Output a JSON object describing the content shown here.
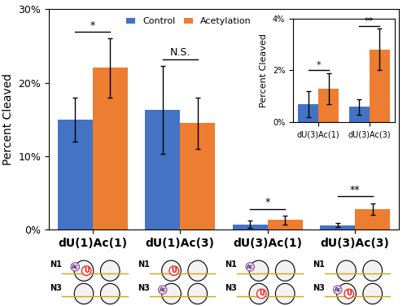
{
  "chart_data": [
    {
      "type": "bar",
      "y_label": "Percent Cleaved",
      "categories": [
        "dU(1)Ac(1)",
        "dU(1)Ac(3)",
        "dU(3)Ac(1)",
        "dU(3)Ac(3)"
      ],
      "series": [
        {
          "name": "Control",
          "color": "#4472c4",
          "values": [
            15.0,
            16.3,
            0.7,
            0.6
          ],
          "errors": [
            3.0,
            6.0,
            0.5,
            0.3
          ]
        },
        {
          "name": "Acetylation",
          "color": "#ed7d31",
          "values": [
            22.0,
            14.5,
            1.3,
            2.8
          ],
          "errors": [
            4.0,
            3.5,
            0.6,
            0.8
          ]
        }
      ],
      "ylim": [
        0,
        30
      ],
      "yticks": [
        {
          "value": 0,
          "label": "0%"
        },
        {
          "value": 10,
          "label": "10%"
        },
        {
          "value": 20,
          "label": "20%"
        },
        {
          "value": 30,
          "label": "30%"
        }
      ],
      "annotations": [
        "*",
        "N.S.",
        "*",
        "**"
      ],
      "legend": "upper center"
    },
    {
      "type": "bar",
      "y_label": "Percent Cleaved",
      "categories": [
        "dU(3)Ac(1)",
        "dU(3)Ac(3)"
      ],
      "series": [
        {
          "name": "Control",
          "color": "#4472c4",
          "values": [
            0.7,
            0.6
          ],
          "errors": [
            0.5,
            0.3
          ]
        },
        {
          "name": "Acetylation",
          "color": "#ed7d31",
          "values": [
            1.3,
            2.8
          ],
          "errors": [
            0.6,
            0.8
          ]
        }
      ],
      "ylim": [
        0,
        4
      ],
      "yticks": [
        {
          "value": 0,
          "label": "0%"
        },
        {
          "value": 2,
          "label": "2%"
        },
        {
          "value": 4,
          "label": "4%"
        }
      ],
      "annotations": [
        "*",
        "**"
      ]
    }
  ],
  "diagram": {
    "rows": [
      "N1",
      "N3"
    ],
    "acetyl_label": "Ac",
    "uracil_label": "U",
    "uracil_nucleosome": [
      "N1",
      "N1",
      "N3",
      "N3"
    ],
    "acetyl_nucleosome": [
      "N1",
      "N3",
      "N1",
      "N3"
    ]
  }
}
